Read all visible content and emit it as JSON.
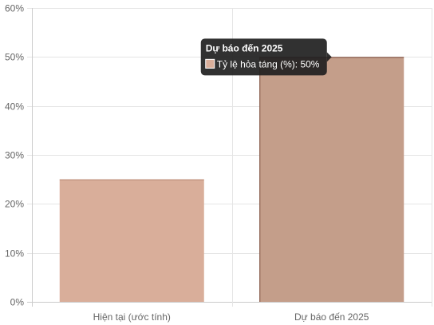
{
  "chart_data": {
    "type": "bar",
    "categories": [
      "Hiện tại (ước tính)",
      "Dự báo đến 2025"
    ],
    "series": [
      {
        "name": "Tỷ lệ hỏa táng (%)",
        "values": [
          25,
          50
        ]
      }
    ],
    "ylim": [
      0,
      60
    ],
    "yticks": [
      0,
      10,
      20,
      30,
      40,
      50,
      60
    ],
    "ytick_suffix": "%",
    "grid": true,
    "legend": "none",
    "colors": {
      "bar_fill": "#d9ae9a",
      "bar_stroke": "#b88875",
      "bar_fill_hover": "#c49e8a",
      "bar_stroke_hover": "#7a4a3a",
      "grid": "#e5e5e5",
      "axis": "#cccccc",
      "tooltip_bg": "#1f1f1f"
    },
    "tooltip": {
      "title": "Dự báo đến 2025",
      "label": "Tỷ lệ hỏa táng (%): 50%",
      "category_index": 1
    }
  }
}
